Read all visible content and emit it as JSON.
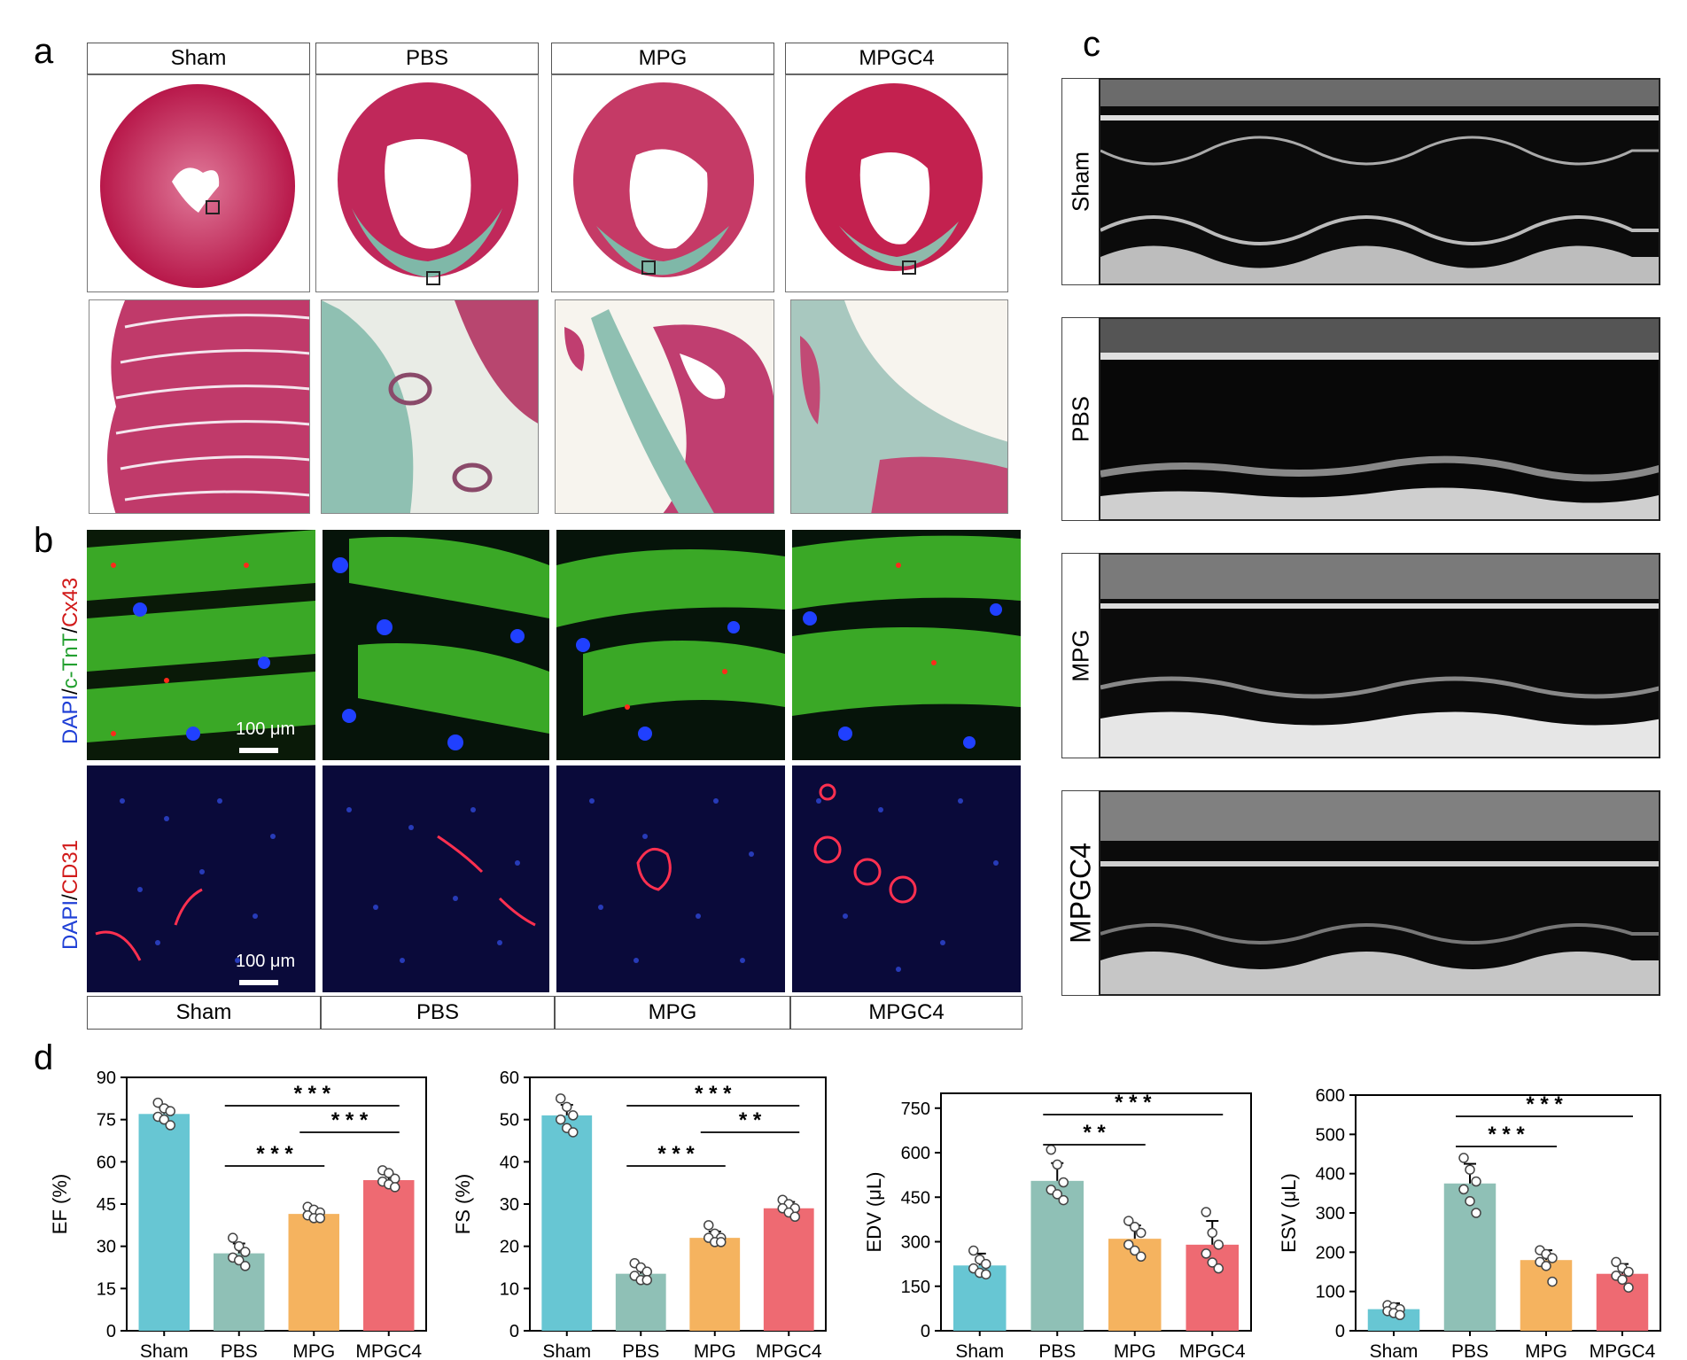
{
  "panels": {
    "a": "a",
    "b": "b",
    "c": "c",
    "d": "d"
  },
  "groups": [
    "Sham",
    "PBS",
    "MPG",
    "MPGC4"
  ],
  "panel_b": {
    "row1_label": {
      "p1": "DAPI",
      "p2": "/",
      "p3": "c-TnT",
      "p4": "/",
      "p5": "Cx43"
    },
    "row2_label": {
      "p1": "DAPI",
      "p2": "/",
      "p3": "CD31"
    },
    "scalebar": "100 μm"
  },
  "colors": {
    "Sham": "#67c6d3",
    "PBS": "#8fc0b6",
    "MPG": "#f5b35f",
    "MPGC4": "#ee6a72"
  },
  "chart_data": [
    {
      "type": "bar",
      "ylabel": "EF (%)",
      "categories": [
        "Sham",
        "PBS",
        "MPG",
        "MPGC4"
      ],
      "values": [
        77,
        27.5,
        41.5,
        53.5
      ],
      "errors": [
        2.5,
        3.5,
        1.5,
        2
      ],
      "ylim": [
        0,
        90
      ],
      "yticks": [
        0,
        15,
        30,
        45,
        60,
        75,
        90
      ],
      "points": [
        [
          81,
          79,
          78,
          76,
          75,
          73
        ],
        [
          33,
          30,
          28,
          26,
          25,
          23
        ],
        [
          44,
          43,
          42,
          41,
          40,
          40
        ],
        [
          57,
          56,
          54,
          53,
          52,
          51
        ]
      ],
      "sig": [
        {
          "from": 1,
          "to": 2,
          "label": "* * *",
          "level": 0
        },
        {
          "from": 2,
          "to": 3,
          "label": "* * *",
          "level": 1
        },
        {
          "from": 1,
          "to": 3,
          "label": "* * *",
          "level": 2
        }
      ]
    },
    {
      "type": "bar",
      "ylabel": "FS (%)",
      "categories": [
        "Sham",
        "PBS",
        "MPG",
        "MPGC4"
      ],
      "values": [
        51,
        13.5,
        22,
        29
      ],
      "errors": [
        2.5,
        1.5,
        1.5,
        1.5
      ],
      "ylim": [
        0,
        60
      ],
      "yticks": [
        0,
        10,
        20,
        30,
        40,
        50,
        60
      ],
      "points": [
        [
          55,
          53,
          51,
          50,
          48,
          47
        ],
        [
          16,
          15,
          14,
          13,
          12,
          12
        ],
        [
          25,
          23,
          22,
          22,
          21,
          21
        ],
        [
          31,
          30,
          29,
          29,
          28,
          27
        ]
      ],
      "sig": [
        {
          "from": 1,
          "to": 2,
          "label": "* * *",
          "level": 0
        },
        {
          "from": 2,
          "to": 3,
          "label": "* *",
          "level": 1
        },
        {
          "from": 1,
          "to": 3,
          "label": "* * *",
          "level": 2
        }
      ]
    },
    {
      "type": "bar",
      "ylabel": "EDV (μL)",
      "categories": [
        "Sham",
        "PBS",
        "MPG",
        "MPGC4"
      ],
      "values": [
        220,
        505,
        310,
        290
      ],
      "errors": [
        40,
        60,
        45,
        80
      ],
      "ylim": [
        0,
        800
      ],
      "yticks": [
        0,
        150,
        300,
        450,
        600,
        750
      ],
      "points": [
        [
          270,
          240,
          225,
          210,
          195,
          190
        ],
        [
          610,
          560,
          500,
          475,
          460,
          440
        ],
        [
          370,
          350,
          330,
          290,
          270,
          250
        ],
        [
          400,
          330,
          290,
          260,
          230,
          210
        ]
      ],
      "sig": [
        {
          "from": 1,
          "to": 2,
          "label": "* *",
          "level": 0
        },
        {
          "from": 1,
          "to": 3,
          "label": "* * *",
          "level": 1
        }
      ]
    },
    {
      "type": "bar",
      "ylabel": "ESV (μL)",
      "categories": [
        "Sham",
        "PBS",
        "MPG",
        "MPGC4"
      ],
      "values": [
        55,
        375,
        180,
        145
      ],
      "errors": [
        15,
        50,
        25,
        25
      ],
      "ylim": [
        0,
        600
      ],
      "yticks": [
        0,
        100,
        200,
        300,
        400,
        500,
        600
      ],
      "points": [
        [
          65,
          60,
          55,
          50,
          45,
          40
        ],
        [
          440,
          410,
          380,
          360,
          330,
          300
        ],
        [
          205,
          195,
          185,
          175,
          165,
          125
        ],
        [
          175,
          160,
          150,
          140,
          130,
          110
        ]
      ],
      "sig": [
        {
          "from": 1,
          "to": 2,
          "label": "* * *",
          "level": 0
        },
        {
          "from": 1,
          "to": 3,
          "label": "* * *",
          "level": 1
        }
      ]
    }
  ]
}
